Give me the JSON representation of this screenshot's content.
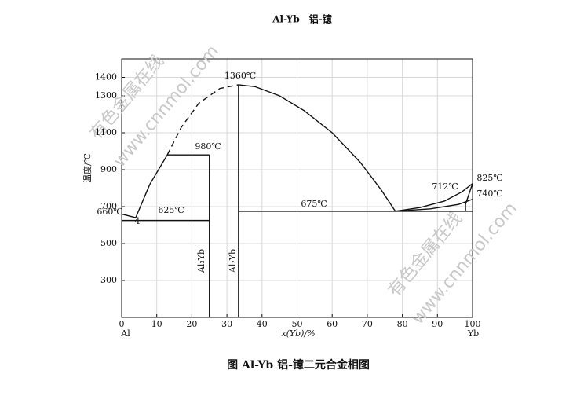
{
  "chart_data": {
    "type": "line",
    "title": "Al-Yb　铝-镱",
    "caption": "图 Al-Yb 铝-镱二元合金相图",
    "xlabel": "x(Yb)/%",
    "ylabel": "温度/℃",
    "x_end_labels": [
      "Al",
      "Yb"
    ],
    "xlim": [
      0,
      100
    ],
    "ylim": [
      100,
      1500
    ],
    "xticks": [
      0,
      10,
      20,
      30,
      40,
      50,
      60,
      70,
      80,
      90,
      100
    ],
    "yticks": [
      1400,
      1300,
      1100,
      900,
      700,
      500,
      300
    ],
    "grid": true,
    "color": "#111111",
    "lines": [
      {
        "x": [
          0,
          4,
          8,
          13
        ],
        "y": [
          660,
          640,
          820,
          980
        ],
        "dashed": false
      },
      {
        "x": [
          13,
          17,
          22,
          28,
          33.3
        ],
        "y": [
          980,
          1130,
          1260,
          1340,
          1360
        ],
        "dashed": true
      },
      {
        "x": [
          33.3,
          38,
          45,
          52,
          60,
          68,
          74,
          78
        ],
        "y": [
          1360,
          1350,
          1300,
          1220,
          1100,
          940,
          790,
          675
        ],
        "dashed": false
      },
      {
        "x": [
          78,
          85,
          92,
          97,
          100
        ],
        "y": [
          675,
          695,
          730,
          780,
          825
        ],
        "dashed": false
      },
      {
        "x": [
          78,
          88,
          96,
          100
        ],
        "y": [
          675,
          688,
          712,
          740
        ],
        "dashed": false
      },
      {
        "x": [
          98,
          98,
          100
        ],
        "y": [
          675,
          712,
          825
        ],
        "dashed": false
      },
      {
        "x": [
          0,
          25
        ],
        "y": [
          625,
          625
        ],
        "dashed": false
      },
      {
        "x": [
          13,
          25
        ],
        "y": [
          980,
          980
        ],
        "dashed": false
      },
      {
        "x": [
          33.3,
          100
        ],
        "y": [
          675,
          675
        ],
        "dashed": false
      },
      {
        "x": [
          25,
          25
        ],
        "y": [
          100,
          980
        ],
        "dashed": false
      },
      {
        "x": [
          33.3,
          33.3
        ],
        "y": [
          100,
          1360
        ],
        "dashed": false
      }
    ],
    "annotations": [
      "1360℃",
      "980℃",
      "625℃",
      "675℃",
      "712℃",
      "825℃",
      "740℃",
      "660℃",
      "4",
      "Al₃Yb",
      "Al₂Yb"
    ],
    "watermarks": [
      "有色金属在线",
      "www.cnnmol.com",
      "有色金属在线",
      "www.cnnmol.com"
    ]
  }
}
